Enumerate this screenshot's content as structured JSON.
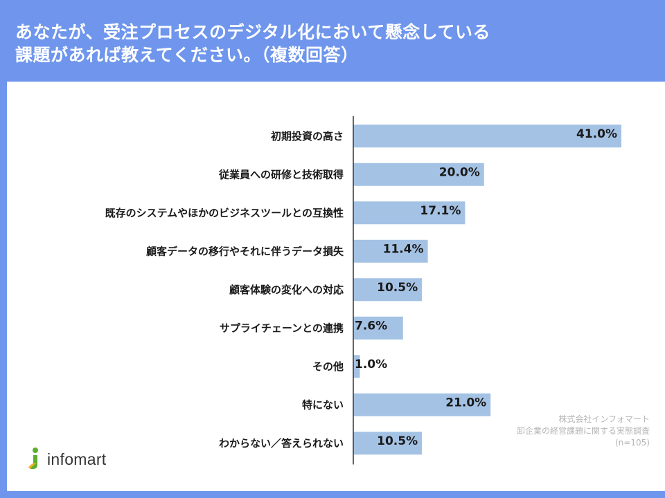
{
  "title": {
    "line1": "あなたが、受注プロセスのデジタル化において懸念している",
    "line2": "課題があれば教えてください。（複数回答）"
  },
  "chart_data": {
    "type": "bar",
    "orientation": "horizontal",
    "categories": [
      "初期投資の高さ",
      "従業員への研修と技術取得",
      "既存のシステムやほかのビジネスツールとの互換性",
      "顧客データの移行やそれに伴うデータ損失",
      "顧客体験の変化への対応",
      "サプライチェーンとの連携",
      "その他",
      "特にない",
      "わからない／答えられない"
    ],
    "values": [
      41.0,
      20.0,
      17.1,
      11.4,
      10.5,
      7.6,
      1.0,
      21.0,
      10.5
    ],
    "value_labels": [
      "41.0%",
      "20.0%",
      "17.1%",
      "11.4%",
      "10.5%",
      "7.6%",
      "1.0%",
      "21.0%",
      "10.5%"
    ],
    "unit": "%",
    "xlim": [
      0,
      41.0
    ],
    "bar_color": "#a4c2e4"
  },
  "source": {
    "line1": "株式会社インフォマート",
    "line2": "卸企業の経営課題に関する実態調査",
    "line3": "(n=105)"
  },
  "logo": {
    "text": "infomart",
    "mark_color": "#5bb030",
    "accent_color": "#f2b01e"
  }
}
